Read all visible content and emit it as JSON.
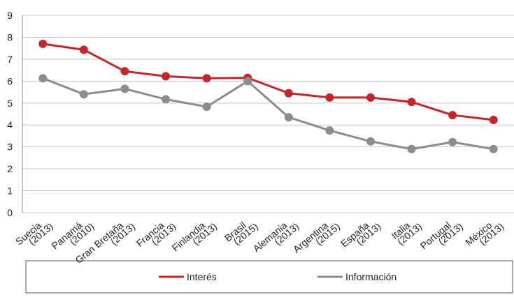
{
  "chart_data": {
    "type": "line",
    "categories": [
      "Suecia (2013)",
      "Panamá (2010)",
      "Gran Bretaña (2013)",
      "Francia (2013)",
      "Finlandia (2013)",
      "Brasil (2015)",
      "Alemania (2013)",
      "Argentina (2015)",
      "España (2013)",
      "Italia (2013)",
      "Portugal (2013)",
      "México (2013)"
    ],
    "series": [
      {
        "name": "Interés",
        "color": "#c0272d",
        "values": [
          7.7,
          7.43,
          6.45,
          6.22,
          6.13,
          6.15,
          5.45,
          5.25,
          5.25,
          5.05,
          4.45,
          4.23
        ]
      },
      {
        "name": "Información",
        "color": "#8c8c8c",
        "values": [
          6.13,
          5.4,
          5.65,
          5.17,
          4.83,
          6.0,
          4.35,
          3.75,
          3.25,
          2.9,
          3.22,
          2.9
        ]
      }
    ],
    "ylim": [
      0,
      9
    ],
    "yticks": [
      0,
      1,
      2,
      3,
      4,
      5,
      6,
      7,
      8,
      9
    ],
    "grid": true,
    "legend": "bottom"
  }
}
